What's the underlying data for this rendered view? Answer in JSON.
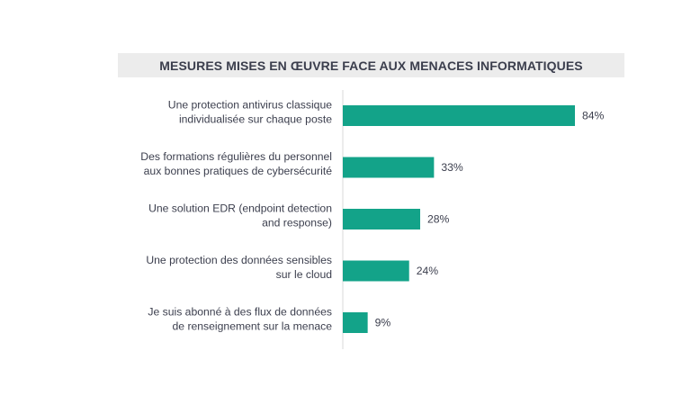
{
  "chart_data": {
    "type": "bar",
    "orientation": "horizontal",
    "title": "MESURES MISES EN ŒUVRE FACE AUX MENACES INFORMATIQUES",
    "categories": [
      [
        "Une protection antivirus classique",
        "individualisée sur chaque poste"
      ],
      [
        "Des formations régulières du personnel",
        "aux bonnes pratiques de cybersécurité"
      ],
      [
        "Une solution EDR (endpoint detection",
        "and response)"
      ],
      [
        "Une protection des données sensibles",
        "sur le cloud"
      ],
      [
        "Je suis abonné à des flux de données",
        "de renseignement sur la menace"
      ]
    ],
    "values": [
      84,
      33,
      28,
      24,
      9
    ],
    "value_labels": [
      "84%",
      "33%",
      "28%",
      "24%",
      "9%"
    ],
    "unit": "%",
    "xlim": [
      0,
      100
    ],
    "grid": false,
    "legend": "none",
    "bar_color": "#13a389",
    "axis_color": "#d9d9d9",
    "text_color": "#3b3e4d"
  }
}
